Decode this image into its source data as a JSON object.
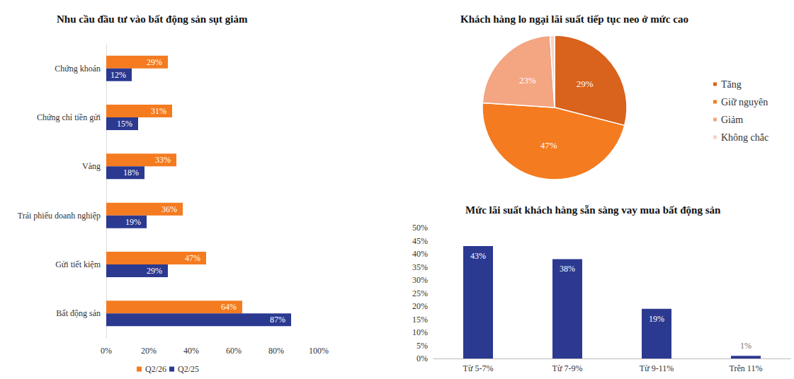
{
  "chart_data": [
    {
      "type": "bar",
      "title": "Nhu cầu đầu tư vào bất động sản sụt giảm",
      "orientation": "horizontal",
      "categories": [
        "Chứng khoán",
        "Chứng chỉ tiền gửi",
        "Vàng",
        "Trái phiếu doanh nghiệp",
        "Gửi tiết kiệm",
        "Bất động sản"
      ],
      "series": [
        {
          "name": "Q2/26",
          "color": "#F47B20",
          "values": [
            29,
            31,
            33,
            36,
            47,
            64
          ],
          "value_labels": [
            "29%",
            "31%",
            "33%",
            "36%",
            "47%",
            "64%"
          ]
        },
        {
          "name": "Q2/25",
          "color": "#2B3990",
          "values": [
            12,
            15,
            18,
            19,
            29,
            87
          ],
          "value_labels": [
            "12%",
            "15%",
            "18%",
            "19%",
            "29%",
            "87%"
          ]
        }
      ],
      "xlim": [
        0,
        100
      ],
      "xticks": [
        {
          "value": 0,
          "label": "0%"
        },
        {
          "value": 20,
          "label": "20%"
        },
        {
          "value": 40,
          "label": "40%"
        },
        {
          "value": 60,
          "label": "60%"
        },
        {
          "value": 80,
          "label": "80%"
        },
        {
          "value": 100,
          "label": "100%"
        }
      ],
      "data_labels": true,
      "legend": "bottom",
      "grid": false
    },
    {
      "type": "pie",
      "title": "Khách hàng lo ngại lãi suất tiếp tục neo ở mức cao",
      "categories": [
        "Tăng",
        "Giữ nguyên",
        "Giảm",
        "Không chắc"
      ],
      "values": [
        29,
        47,
        23,
        1
      ],
      "value_labels": [
        "29%",
        "47%",
        "23%",
        null
      ],
      "colors": [
        "#D9621C",
        "#F47B20",
        "#F4A582",
        "#F9D3C3"
      ],
      "data_labels": true,
      "legend": "right"
    },
    {
      "type": "bar",
      "title": "Mức lãi suất khách hàng sẵn sàng vay mua bất động sản",
      "categories": [
        "Từ 5-7%",
        "Từ 7-9%",
        "Từ 9-11%",
        "Trên 11%"
      ],
      "values": [
        43,
        38,
        19,
        1
      ],
      "value_labels": [
        "43%",
        "38%",
        "19%",
        "1%"
      ],
      "color": "#2B3990",
      "ylim": [
        0,
        50
      ],
      "yticks": [
        {
          "value": 0,
          "label": "0%"
        },
        {
          "value": 5,
          "label": "5%"
        },
        {
          "value": 10,
          "label": "10%"
        },
        {
          "value": 15,
          "label": "15%"
        },
        {
          "value": 20,
          "label": "20%"
        },
        {
          "value": 25,
          "label": "25%"
        },
        {
          "value": 30,
          "label": "30%"
        },
        {
          "value": 35,
          "label": "35%"
        },
        {
          "value": 40,
          "label": "40%"
        },
        {
          "value": 45,
          "label": "45%"
        },
        {
          "value": 50,
          "label": "50%"
        }
      ],
      "data_labels": true,
      "grid": false
    }
  ]
}
